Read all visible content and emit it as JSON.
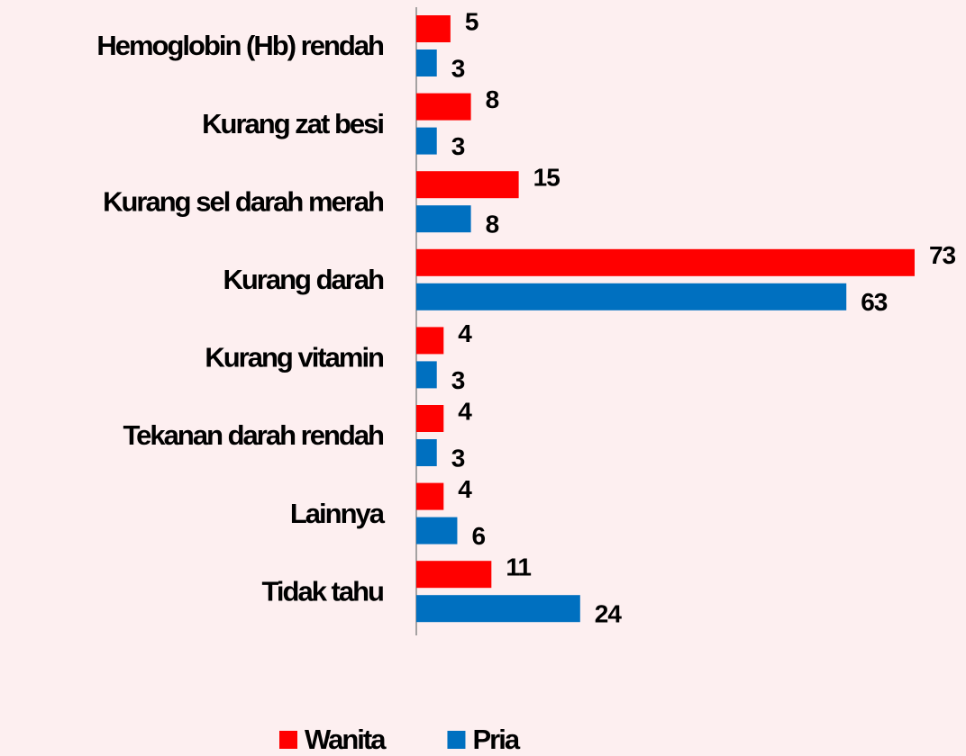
{
  "chart_data": {
    "type": "barh",
    "categories": [
      "Hemoglobin (Hb) rendah",
      "Kurang zat besi",
      "Kurang sel darah merah",
      "Kurang darah",
      "Kurang vitamin",
      "Tekanan darah rendah",
      "Lainnya",
      "Tidak tahu"
    ],
    "series": [
      {
        "name": "Wanita",
        "color": "#ff0000",
        "values": [
          5,
          8,
          15,
          73,
          4,
          4,
          4,
          11
        ]
      },
      {
        "name": "Pria",
        "color": "#0070c0",
        "values": [
          3,
          3,
          8,
          63,
          3,
          3,
          6,
          24
        ]
      }
    ],
    "xlim": [
      0,
      80
    ],
    "legend": "bottom"
  }
}
